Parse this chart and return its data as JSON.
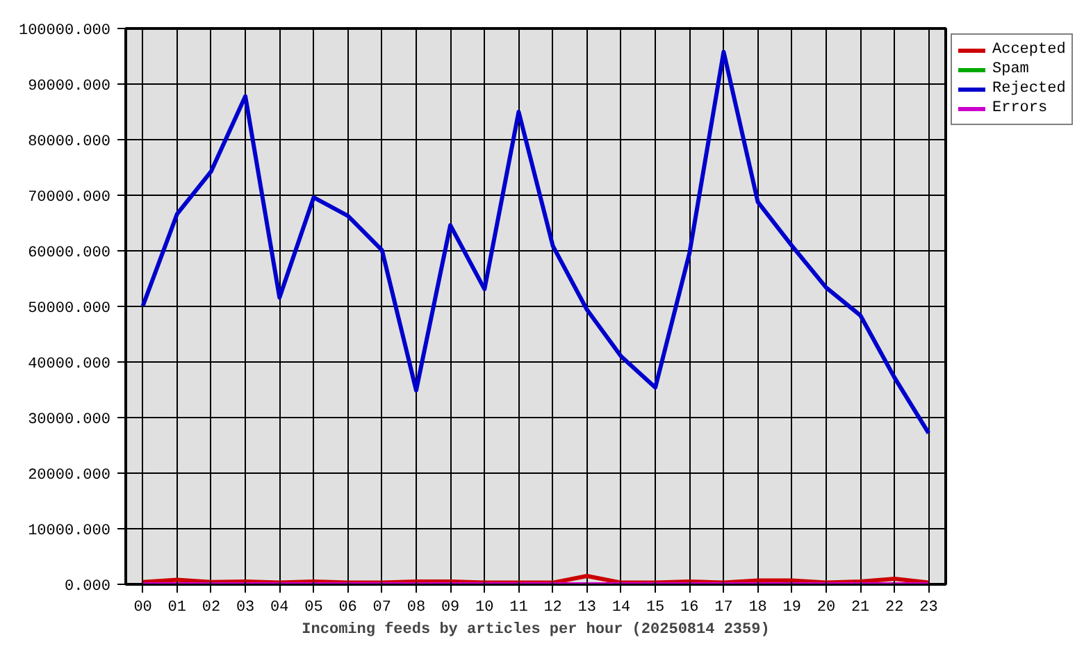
{
  "chart_data": {
    "type": "line",
    "xlabel": "Incoming feeds by articles per hour (20250814 2359)",
    "categories": [
      "00",
      "01",
      "02",
      "03",
      "04",
      "05",
      "06",
      "07",
      "08",
      "09",
      "10",
      "11",
      "12",
      "13",
      "14",
      "15",
      "16",
      "17",
      "18",
      "19",
      "20",
      "21",
      "22",
      "23"
    ],
    "series": [
      {
        "name": "Accepted",
        "color": "#cc0000",
        "values": [
          400,
          800,
          400,
          500,
          300,
          500,
          300,
          300,
          500,
          500,
          300,
          300,
          300,
          1500,
          300,
          300,
          500,
          300,
          700,
          700,
          300,
          500,
          1000,
          300
        ]
      },
      {
        "name": "Spam",
        "color": "#00aa00",
        "values": [
          null,
          null,
          null,
          null,
          null,
          null,
          null,
          null,
          null,
          null,
          null,
          null,
          null,
          null,
          null,
          null,
          null,
          null,
          null,
          null,
          null,
          null,
          null,
          null
        ]
      },
      {
        "name": "Rejected",
        "color": "#0000cc",
        "values": [
          50100,
          66600,
          74300,
          87800,
          51600,
          69600,
          66300,
          60100,
          34900,
          64600,
          53100,
          85000,
          60900,
          49400,
          41000,
          35400,
          59600,
          95800,
          68800,
          60900,
          53400,
          48400,
          37200,
          27200
        ]
      },
      {
        "name": "Errors",
        "color": "#cc00cc",
        "values": [
          0,
          0,
          0,
          0,
          0,
          0,
          0,
          0,
          0,
          0,
          0,
          0,
          0,
          0,
          0,
          0,
          0,
          0,
          0,
          0,
          0,
          0,
          0,
          0
        ]
      }
    ],
    "ylim": [
      0,
      100000
    ],
    "yticks": [
      {
        "value": 0,
        "label": "0.000"
      },
      {
        "value": 10000,
        "label": "10000.000"
      },
      {
        "value": 20000,
        "label": "20000.000"
      },
      {
        "value": 30000,
        "label": "30000.000"
      },
      {
        "value": 40000,
        "label": "40000.000"
      },
      {
        "value": 50000,
        "label": "50000.000"
      },
      {
        "value": 60000,
        "label": "60000.000"
      },
      {
        "value": 70000,
        "label": "70000.000"
      },
      {
        "value": 80000,
        "label": "80000.000"
      },
      {
        "value": 90000,
        "label": "90000.000"
      },
      {
        "value": 100000,
        "label": "100000.000"
      }
    ],
    "grid": true,
    "legend": "top right",
    "line_style": "solid"
  }
}
